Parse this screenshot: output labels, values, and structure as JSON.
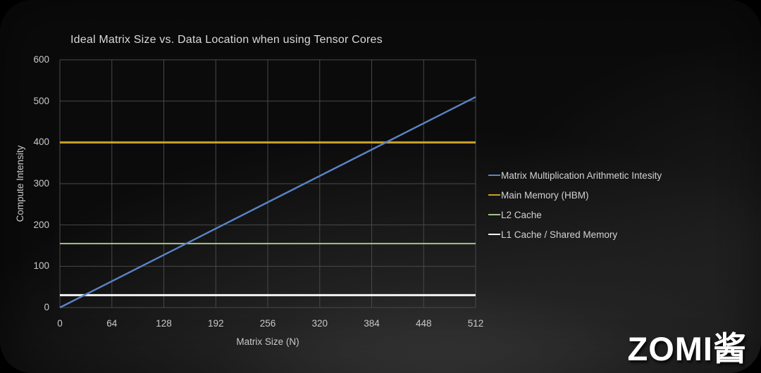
{
  "slide": {
    "watermark": "ZOMI酱"
  },
  "colors": {
    "background_outer": "#000000",
    "grid": "#484848",
    "axis_text": "#c9c9c9",
    "title_text": "#d9d9d9",
    "legend_text": "#d2d2d2",
    "watermark_text": "#ffffff"
  },
  "chart_data": {
    "type": "line",
    "title": "Ideal Matrix Size vs. Data Location when using Tensor Cores",
    "xlabel": "Matrix Size (N)",
    "ylabel": "Compute Intensity",
    "xlim": [
      0,
      512
    ],
    "ylim": [
      0,
      600
    ],
    "x_ticks": [
      0,
      64,
      128,
      192,
      256,
      320,
      384,
      448,
      512
    ],
    "y_ticks": [
      0,
      100,
      200,
      300,
      400,
      500,
      600
    ],
    "grid": true,
    "legend_position": "right",
    "series": [
      {
        "name": "Matrix Multiplication Arithmetic Intesity",
        "type": "line",
        "color": "#5b84c8",
        "width": 2.4,
        "points": [
          [
            0,
            0
          ],
          [
            512,
            510
          ]
        ]
      },
      {
        "name": "Main Memory (HBM)",
        "type": "hline",
        "color": "#c9a227",
        "width": 3,
        "value": 400
      },
      {
        "name": "L2 Cache",
        "type": "hline",
        "color": "#a6c28b",
        "width": 2,
        "value": 155
      },
      {
        "name": "L1 Cache / Shared Memory",
        "type": "hline",
        "color": "#f5f5f5",
        "width": 3,
        "value": 30
      }
    ]
  }
}
